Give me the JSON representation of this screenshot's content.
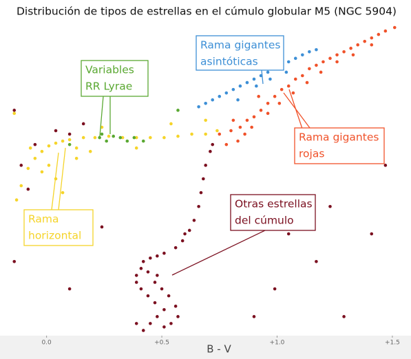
{
  "chart_data": {
    "type": "scatter",
    "title": "Distribución de tipos de estrellas en el cúmulo globular M5 (NGC 5904)",
    "x_label": "B - V",
    "xlim": [
      -0.19,
      1.56
    ],
    "ylim": [
      21,
      12
    ],
    "xticks": [
      {
        "value": 0,
        "label": "0.0"
      },
      {
        "value": 0.5,
        "label": "+0.5"
      },
      {
        "value": 1,
        "label": "+1.0"
      },
      {
        "value": 1.5,
        "label": "+1.5"
      }
    ],
    "series": [
      {
        "color": "#7b1020",
        "x": [
          0.42,
          0.45,
          0.48,
          0.51,
          0.54,
          0.47,
          0.44,
          0.41,
          0.39,
          0.39,
          0.41,
          0.42,
          0.45,
          0.48,
          0.51,
          0.56,
          0.59,
          0.62,
          0.64,
          0.66,
          0.67,
          0.68,
          0.69,
          0.71,
          0.72,
          0.5,
          0.53,
          0.56,
          0.48,
          0.44,
          0.47,
          0.57,
          0.51,
          0.39,
          0.6,
          -0.11,
          -0.05,
          0.04,
          0.16,
          -0.14,
          -0.08,
          0.1,
          1.23,
          1.41,
          0.99,
          1.17,
          0.24,
          1.47,
          0.9,
          0.1,
          -0.14,
          1.29,
          1.05
        ],
        "values": [
          20.85,
          20.65,
          20.45,
          20.25,
          20.65,
          20.05,
          19.85,
          19.65,
          19.46,
          19.26,
          19.06,
          18.86,
          18.76,
          18.7,
          18.62,
          18.46,
          18.26,
          17.96,
          17.67,
          17.27,
          16.87,
          16.47,
          16.08,
          15.68,
          15.48,
          19.65,
          19.85,
          20.15,
          19.26,
          19.16,
          19.46,
          20.45,
          20.75,
          20.65,
          18.06,
          16.08,
          15.48,
          15.08,
          14.88,
          14.49,
          16.77,
          15.18,
          17.27,
          18.06,
          19.65,
          18.86,
          17.86,
          16.08,
          20.45,
          19.65,
          18.86,
          20.45,
          18.06
        ]
      },
      {
        "color": "#f5d42a",
        "x": [
          -0.13,
          -0.11,
          -0.08,
          -0.05,
          -0.02,
          0.01,
          0.04,
          0.07,
          0.1,
          0.16,
          0.21,
          0.27,
          0.33,
          0.39,
          0.45,
          0.51,
          0.57,
          0.63,
          0.69,
          0.74,
          0.01,
          0.04,
          0.07,
          -0.02,
          0.13,
          0.24,
          0.19,
          0.39,
          0.54,
          -0.14,
          0.13,
          -0.07,
          0.69
        ],
        "values": [
          17.08,
          16.67,
          16.17,
          15.88,
          15.68,
          15.52,
          15.44,
          15.38,
          15.34,
          15.28,
          15.28,
          15.24,
          15.28,
          15.28,
          15.28,
          15.28,
          15.24,
          15.18,
          15.18,
          15.08,
          16.08,
          16.47,
          16.87,
          16.27,
          15.58,
          14.98,
          15.68,
          15.58,
          14.88,
          14.58,
          15.88,
          15.58,
          14.78
        ]
      },
      {
        "color": "#5aa832",
        "x": [
          0.23,
          0.26,
          0.29,
          0.32,
          0.35,
          0.38,
          0.42,
          0.24,
          0.1,
          0.57
        ],
        "values": [
          15.28,
          15.38,
          15.24,
          15.28,
          15.38,
          15.28,
          15.38,
          15.18,
          15.48,
          14.49
        ]
      },
      {
        "color": "#f0522a",
        "x": [
          0.75,
          0.8,
          0.84,
          0.87,
          0.9,
          0.93,
          0.96,
          0.99,
          1.02,
          1.05,
          1.08,
          1.11,
          1.14,
          1.17,
          1.2,
          1.23,
          1.26,
          1.29,
          1.32,
          1.35,
          1.38,
          1.41,
          1.44,
          1.47,
          1.51,
          0.83,
          0.86,
          0.89,
          0.96,
          1.01,
          1.07,
          1.13,
          1.19,
          1.26,
          1.33,
          1.41,
          0.78,
          0.81,
          0.92
        ],
        "values": [
          15.18,
          15.08,
          14.98,
          14.78,
          14.68,
          14.49,
          14.29,
          14.09,
          13.89,
          13.79,
          13.59,
          13.49,
          13.29,
          13.19,
          13.09,
          12.99,
          12.89,
          12.8,
          12.7,
          12.6,
          12.5,
          12.4,
          12.3,
          12.2,
          12.1,
          15.38,
          15.18,
          14.98,
          14.58,
          14.29,
          13.99,
          13.69,
          13.39,
          13.09,
          12.89,
          12.6,
          15.48,
          14.78,
          14.09
        ]
      },
      {
        "color": "#3d8fd6",
        "x": [
          0.69,
          0.72,
          0.75,
          0.78,
          0.81,
          0.84,
          0.87,
          0.9,
          0.93,
          0.96,
          0.99,
          1.02,
          1.05,
          1.08,
          1.11,
          1.14,
          1.17,
          0.66,
          0.83,
          0.91,
          0.97,
          1.04
        ],
        "values": [
          14.29,
          14.19,
          14.09,
          13.99,
          13.89,
          13.79,
          13.69,
          13.59,
          13.49,
          13.39,
          13.29,
          13.19,
          13.09,
          12.99,
          12.89,
          12.8,
          12.74,
          14.39,
          14.19,
          13.79,
          13.59,
          13.39
        ]
      }
    ],
    "annotations": [
      {
        "text": [
          "Rama gigantes",
          "asintóticas"
        ],
        "color": "#3d8fd6"
      },
      {
        "text": [
          "Variables",
          "RR Lyrae"
        ],
        "color": "#5aa832"
      },
      {
        "text": [
          "Rama gigantes",
          "rojas"
        ],
        "color": "#f0522a"
      },
      {
        "text": [
          "Otras estrellas",
          "del cúmulo"
        ],
        "color": "#7b1020"
      },
      {
        "text": [
          "Rama",
          "horizontal"
        ],
        "color": "#f5d42a"
      }
    ]
  }
}
